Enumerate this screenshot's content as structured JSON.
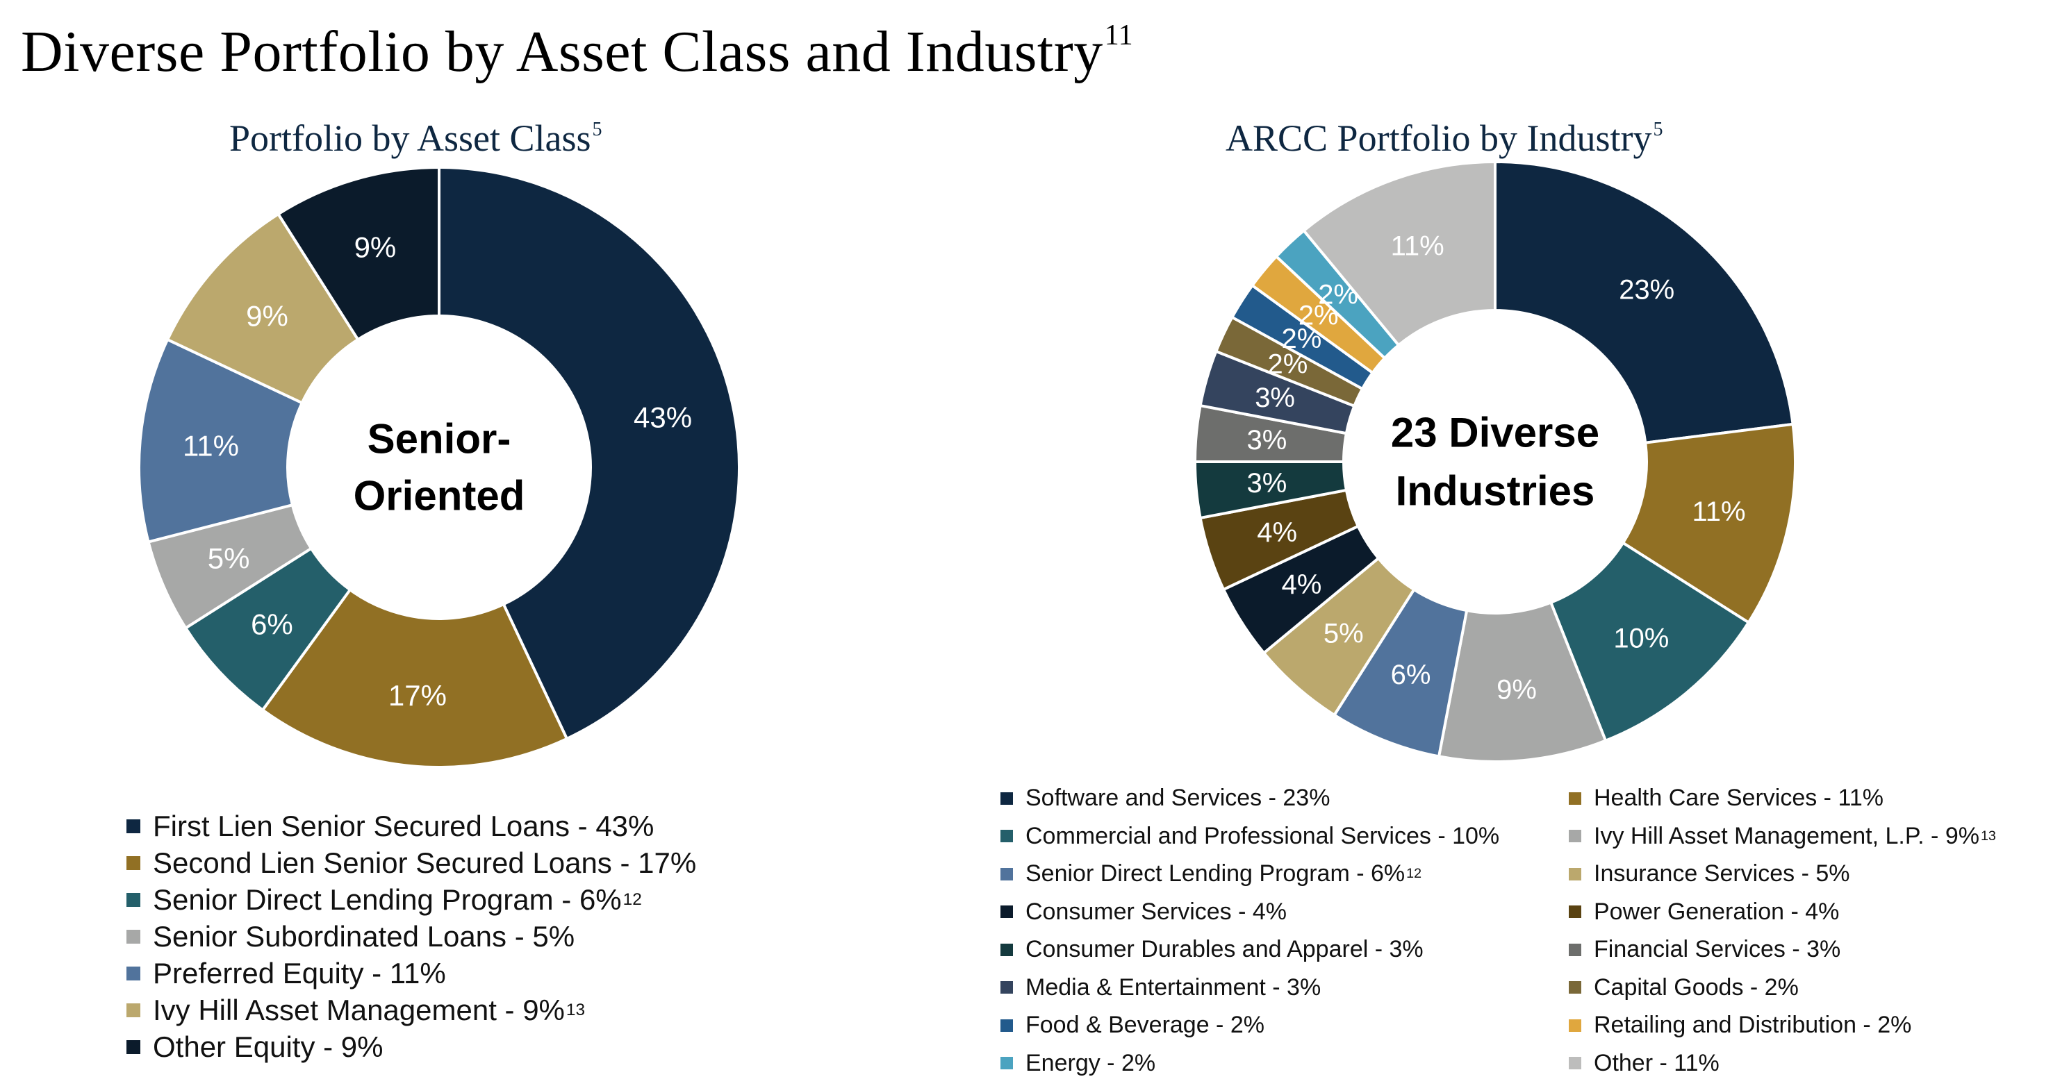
{
  "header": {
    "title": "Diverse Portfolio by Asset Class and Industry",
    "title_sup": "11"
  },
  "chart_data": [
    {
      "type": "pie",
      "title": "Portfolio by Asset Class",
      "title_sup": "5",
      "center_label": [
        "Senior-",
        "Oriented"
      ],
      "categories": [
        "First Lien Senior Secured Loans",
        "Second Lien Senior Secured Loans",
        "Senior Direct Lending Program",
        "Senior Subordinated Loans",
        "Preferred Equity",
        "Ivy Hill Asset Management",
        "Other Equity"
      ],
      "values": [
        43,
        17,
        6,
        5,
        11,
        9,
        9
      ],
      "data_labels": [
        "43%",
        "17%",
        "6%",
        "5%",
        "11%",
        "9%",
        "9%"
      ],
      "colors": [
        "#0e2741",
        "#917024",
        "#245f6a",
        "#a7a8a7",
        "#51739c",
        "#bba86d",
        "#0b1b2b"
      ],
      "label_colors": [
        "#ffffff",
        "#ffffff",
        "#ffffff",
        "#ffffff",
        "#ffffff",
        "#ffffff",
        "#ffffff"
      ],
      "legend": [
        {
          "text": "First Lien Senior Secured Loans - 43%",
          "sup": ""
        },
        {
          "text": "Second Lien Senior Secured Loans - 17%",
          "sup": ""
        },
        {
          "text": "Senior Direct Lending Program - 6%",
          "sup": "12"
        },
        {
          "text": "Senior Subordinated Loans - 5%",
          "sup": ""
        },
        {
          "text": "Preferred Equity - 11%",
          "sup": ""
        },
        {
          "text": "Ivy Hill Asset Management - 9%",
          "sup": "13"
        },
        {
          "text": "Other Equity - 9%",
          "sup": ""
        }
      ]
    },
    {
      "type": "pie",
      "title": "ARCC Portfolio by Industry",
      "title_sup": "5",
      "center_label": [
        "23 Diverse",
        "Industries"
      ],
      "categories": [
        "Software and Services",
        "Health Care Services",
        "Commercial and Professional Services",
        "Ivy Hill Asset Management, L.P.",
        "Senior Direct Lending Program",
        "Insurance Services",
        "Consumer Services",
        "Power Generation",
        "Consumer Durables and Apparel",
        "Financial Services",
        "Media & Entertainment",
        "Capital Goods",
        "Food & Beverage",
        "Retailing and Distribution",
        "Energy",
        "Other"
      ],
      "values": [
        23,
        11,
        10,
        9,
        6,
        5,
        4,
        4,
        3,
        3,
        3,
        2,
        2,
        2,
        2,
        11
      ],
      "data_labels": [
        "23%",
        "11%",
        "10%",
        "9%",
        "6%",
        "5%",
        "4%",
        "4%",
        "3%",
        "3%",
        "3%",
        "2%",
        "2%",
        "2%",
        "2%",
        "11%"
      ],
      "colors": [
        "#0e2741",
        "#917024",
        "#245f6a",
        "#a7a8a7",
        "#51739c",
        "#bba86d",
        "#0b1b2b",
        "#5a4312",
        "#143a3e",
        "#6d6e6c",
        "#34445e",
        "#7a6838",
        "#225a8c",
        "#e0a73e",
        "#4ba3c0",
        "#bdbdbc"
      ],
      "label_colors": [
        "#ffffff",
        "#ffffff",
        "#ffffff",
        "#ffffff",
        "#ffffff",
        "#ffffff",
        "#ffffff",
        "#ffffff",
        "#ffffff",
        "#ffffff",
        "#ffffff",
        "#ffffff",
        "#ffffff",
        "#ffffff",
        "#ffffff",
        "#ffffff"
      ],
      "legend": [
        {
          "text": "Software and Services - 23%",
          "sup": ""
        },
        {
          "text": "Health Care Services - 11%",
          "sup": ""
        },
        {
          "text": "Commercial and Professional Services - 10%",
          "sup": ""
        },
        {
          "text": "Ivy Hill Asset Management, L.P. - 9%",
          "sup": "13"
        },
        {
          "text": "Senior Direct Lending Program - 6%",
          "sup": "12"
        },
        {
          "text": "Insurance Services - 5%",
          "sup": ""
        },
        {
          "text": "Consumer Services - 4%",
          "sup": ""
        },
        {
          "text": "Power Generation - 4%",
          "sup": ""
        },
        {
          "text": "Consumer Durables and Apparel - 3%",
          "sup": ""
        },
        {
          "text": "Financial Services - 3%",
          "sup": ""
        },
        {
          "text": "Media & Entertainment - 3%",
          "sup": ""
        },
        {
          "text": "Capital Goods - 2%",
          "sup": ""
        },
        {
          "text": "Food & Beverage - 2%",
          "sup": ""
        },
        {
          "text": "Retailing and Distribution - 2%",
          "sup": ""
        },
        {
          "text": "Energy - 2%",
          "sup": ""
        },
        {
          "text": "Other - 11%",
          "sup": ""
        }
      ]
    }
  ]
}
